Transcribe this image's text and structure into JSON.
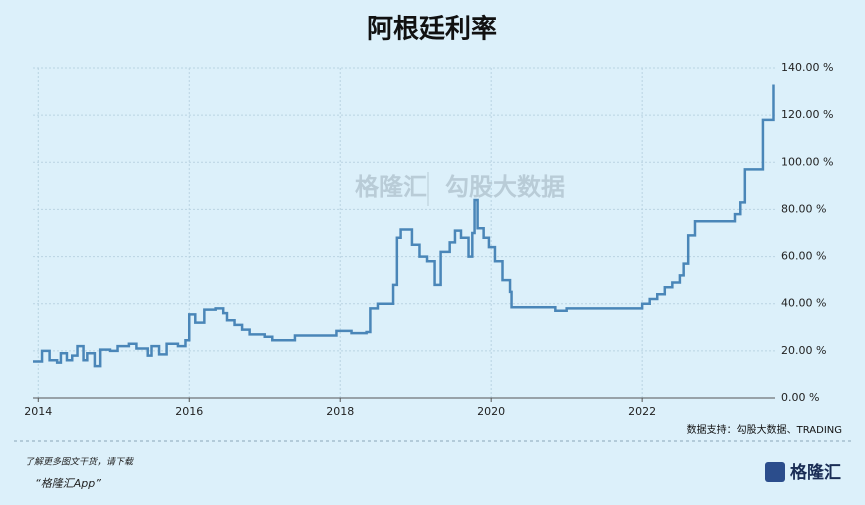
{
  "chart_data": {
    "type": "line",
    "title": "阿根廷利率",
    "source": "数据支持：勾股大数据、TRADING",
    "footer_line1": "了解更多图文干货，请下载",
    "footer_line2": "“格隆汇App”",
    "watermark_left": "格隆汇",
    "watermark_right": "勾股大数据",
    "logo": "格隆汇",
    "step": true,
    "grid": true,
    "xlim": [
      2013.93,
      2023.76
    ],
    "xticks": [
      2014,
      2016,
      2018,
      2020,
      2022
    ],
    "ylim": [
      0,
      140
    ],
    "yticks": [
      {
        "value": 0,
        "label": "0.00 %"
      },
      {
        "value": 20,
        "label": "20.00 %"
      },
      {
        "value": 40,
        "label": "40.00 %"
      },
      {
        "value": 60,
        "label": "60.00 %"
      },
      {
        "value": 80,
        "label": "80.00 %"
      },
      {
        "value": 100,
        "label": "100.00 %"
      },
      {
        "value": 120,
        "label": "120.00 %"
      },
      {
        "value": 140,
        "label": "140.00 %"
      }
    ],
    "series": [
      {
        "color": "#4a86b8",
        "x": [
          2013.93,
          2014.05,
          2014.15,
          2014.25,
          2014.3,
          2014.38,
          2014.45,
          2014.52,
          2014.6,
          2014.65,
          2014.75,
          2014.82,
          2014.95,
          2015.05,
          2015.2,
          2015.3,
          2015.45,
          2015.5,
          2015.6,
          2015.7,
          2015.85,
          2015.95,
          2016.0,
          2016.08,
          2016.2,
          2016.35,
          2016.45,
          2016.5,
          2016.6,
          2016.7,
          2016.8,
          2017.0,
          2017.1,
          2017.4,
          2017.95,
          2018.15,
          2018.35,
          2018.4,
          2018.5,
          2018.7,
          2018.75,
          2018.8,
          2018.95,
          2019.05,
          2019.15,
          2019.25,
          2019.33,
          2019.45,
          2019.52,
          2019.6,
          2019.7,
          2019.75,
          2019.78,
          2019.82,
          2019.9,
          2019.97,
          2020.05,
          2020.15,
          2020.25,
          2020.27,
          2020.85,
          2021.0,
          2022.0,
          2022.1,
          2022.2,
          2022.3,
          2022.4,
          2022.5,
          2022.55,
          2022.61,
          2022.7,
          2023.23,
          2023.3,
          2023.36,
          2023.6,
          2023.74
        ],
        "values": [
          15.5,
          20,
          16,
          15,
          19,
          16,
          18,
          22,
          16,
          19,
          13.5,
          20.5,
          20,
          22,
          23,
          21,
          18,
          22,
          18.5,
          23,
          22,
          24.5,
          35.5,
          32,
          37.5,
          38,
          36,
          33,
          31,
          29,
          27,
          26,
          24.5,
          26.5,
          28.5,
          27.5,
          28,
          38,
          40,
          48,
          68,
          71.5,
          65,
          60,
          58,
          48,
          62,
          66,
          71,
          68,
          60,
          70,
          84,
          72,
          68,
          64,
          58,
          50,
          45,
          38.5,
          37,
          38,
          40,
          42,
          44,
          47,
          49,
          52,
          57,
          69,
          75,
          78,
          83,
          97,
          118,
          133
        ]
      }
    ]
  }
}
